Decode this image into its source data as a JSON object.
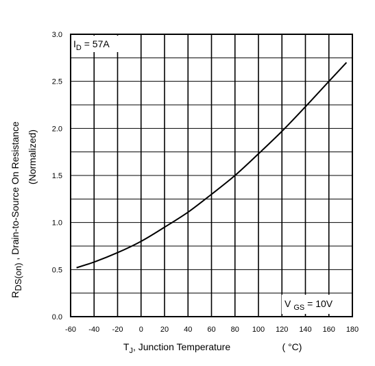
{
  "chart_data": {
    "type": "line",
    "title": "",
    "xlabel": {
      "main": "T",
      "sub": "J",
      "rest": ", Junction Temperature",
      "unit": "( °C)"
    },
    "ylabel": {
      "main": "R",
      "sub": "DS(on)",
      "rest": " , Drain-to-Source On Resistance",
      "line2": "(Normalized)"
    },
    "xlim": [
      -60,
      180
    ],
    "ylim": [
      0.0,
      3.0
    ],
    "xticks": [
      "-60",
      "-40",
      "-20",
      "0",
      "20",
      "40",
      "60",
      "80",
      "100",
      "120",
      "140",
      "160",
      "180"
    ],
    "yticks": [
      "0.0",
      "0.5",
      "1.0",
      "1.5",
      "2.0",
      "2.5",
      "3.0"
    ],
    "grid": true,
    "series": [
      {
        "x": [
          -55,
          -40,
          -20,
          0,
          20,
          40,
          60,
          80,
          100,
          120,
          140,
          160,
          175
        ],
        "y": [
          0.52,
          0.58,
          0.68,
          0.8,
          0.95,
          1.11,
          1.3,
          1.5,
          1.73,
          1.97,
          2.23,
          2.5,
          2.7
        ]
      }
    ],
    "annotations": {
      "id_label": {
        "main": "I",
        "sub": "D",
        "rest": " =  57A"
      },
      "vgs_label": {
        "main": "V",
        "sub": "GS",
        "rest": " = 10V"
      }
    },
    "colors": {
      "line": "#000000",
      "grid": "#000000",
      "background": "#ffffff"
    }
  }
}
